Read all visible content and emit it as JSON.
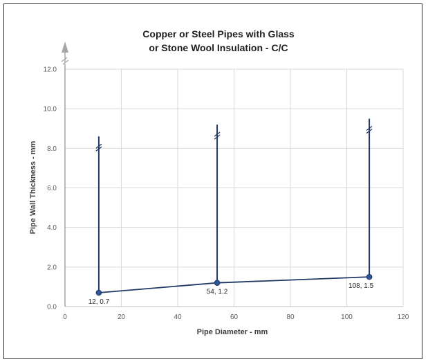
{
  "chart_data": {
    "type": "scatter",
    "title": [
      "Copper or Steel Pipes with Glass",
      "or Stone Wool Insulation - C/C"
    ],
    "xlabel": "Pipe Diameter - mm",
    "ylabel": "Pipe Wall Thickness - mm",
    "xlim": [
      0,
      120
    ],
    "ylim": [
      0,
      12
    ],
    "x_ticks": [
      "0",
      "20",
      "40",
      "60",
      "80",
      "100",
      "120"
    ],
    "y_ticks": [
      "0.0",
      "2.0",
      "4.0",
      "6.0",
      "8.0",
      "10.0",
      "12.0"
    ],
    "grid": true,
    "legend": "none",
    "series": [
      {
        "x": [
          12,
          54,
          108
        ],
        "y": [
          0.7,
          1.2,
          1.5
        ],
        "labels": [
          "12, 0.7",
          "54, 1.2",
          "108, 1.5"
        ],
        "color": "#1f3864",
        "marker_color": "#2e5597"
      }
    ],
    "break_marks": [
      {
        "x": 12,
        "y_top": 8.6
      },
      {
        "x": 54,
        "y_top": 9.2
      },
      {
        "x": 108,
        "y_top": 9.5
      }
    ],
    "y_axis_break": true
  }
}
